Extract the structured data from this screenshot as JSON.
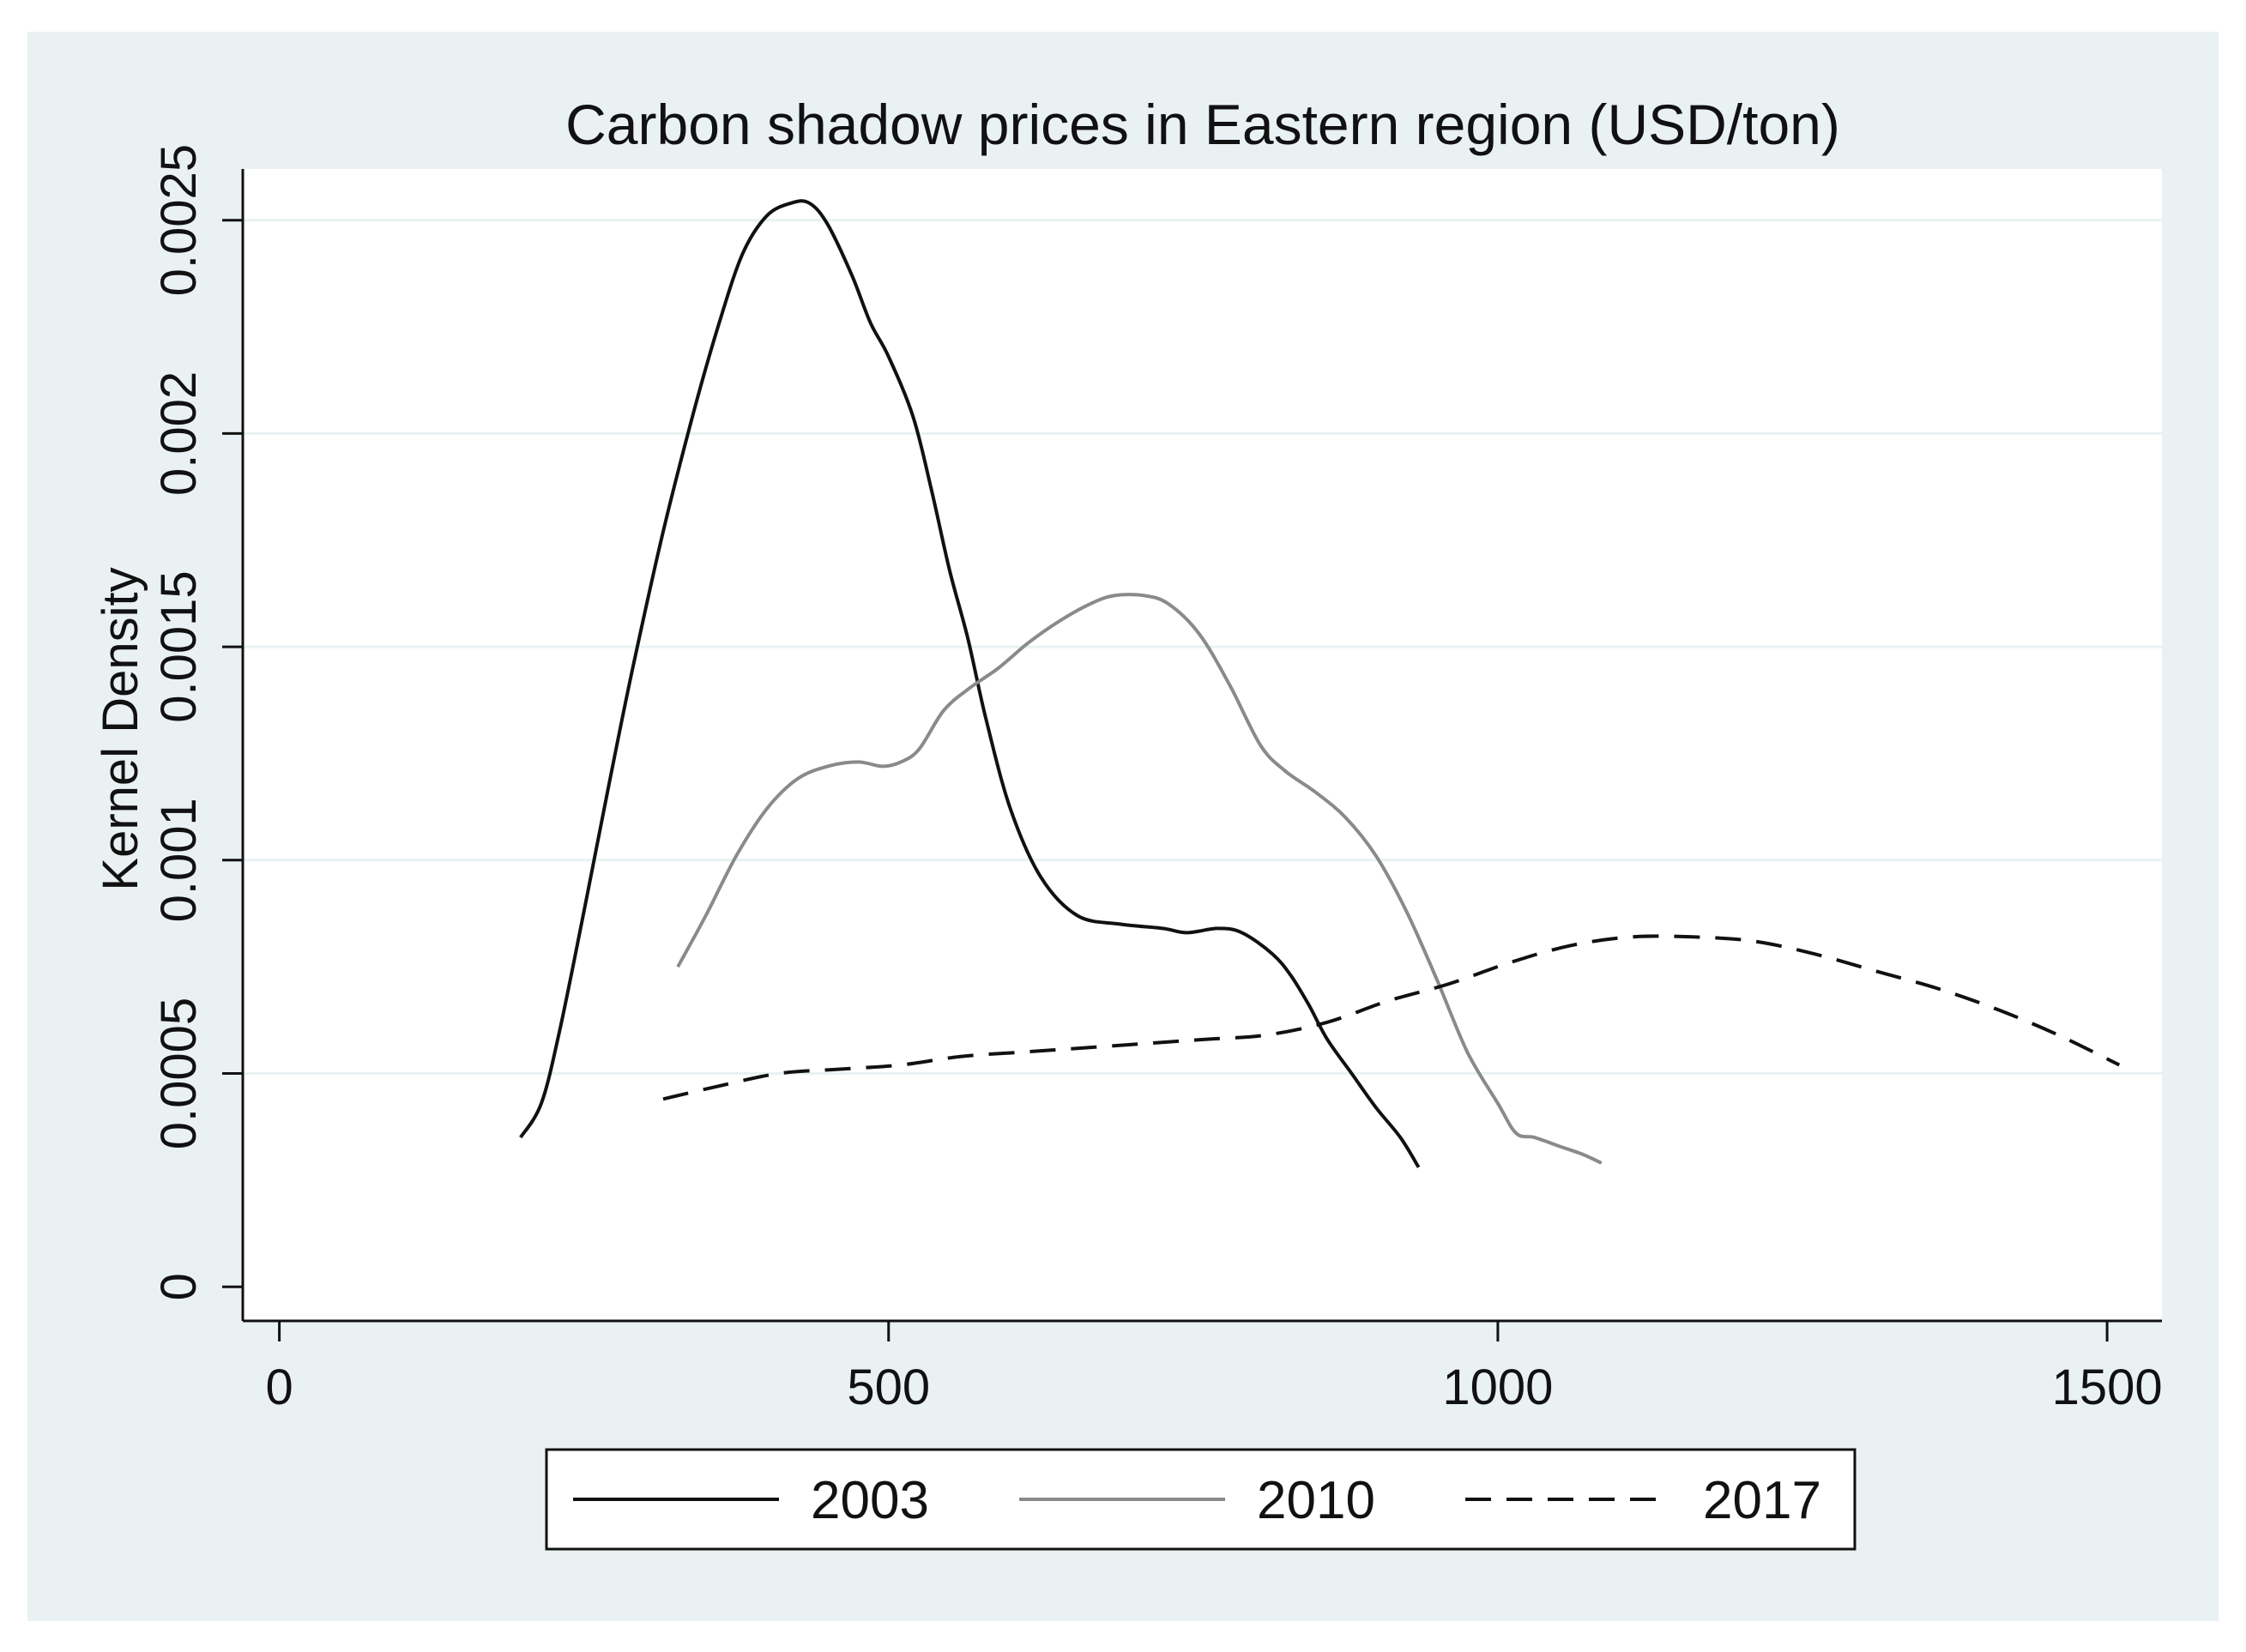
{
  "chart_data": {
    "type": "line",
    "title": "Carbon shadow prices in Eastern region (USD/ton)",
    "xlabel": "",
    "ylabel": "Kernel Density",
    "xlim": [
      -30,
      1545
    ],
    "ylim": [
      -8e-05,
      0.00262
    ],
    "x_ticks": [
      0,
      500,
      1000,
      1500
    ],
    "x_tick_labels": [
      "0",
      "500",
      "1000",
      "1500"
    ],
    "y_ticks": [
      0,
      0.0005,
      0.001,
      0.0015,
      0.002,
      0.0025
    ],
    "y_tick_labels": [
      "0",
      "0.0005",
      "0.001",
      "0.0015",
      "0.002",
      "0.0025"
    ],
    "grid": true,
    "legend_position": "bottom",
    "series": [
      {
        "name": "2003",
        "style": "solid",
        "color": "#111111",
        "x": [
          198,
          215,
          230,
          250,
          270,
          290,
          315,
          340,
          360,
          380,
          400,
          420,
          435,
          450,
          470,
          485,
          500,
          520,
          535,
          550,
          565,
          580,
          600,
          625,
          655,
          690,
          725,
          745,
          770,
          790,
          815,
          830,
          845,
          860,
          880,
          900,
          920,
          935
        ],
        "y": [
          0.00035,
          0.00043,
          0.0006,
          0.00088,
          0.00117,
          0.00145,
          0.00177,
          0.00205,
          0.00225,
          0.00242,
          0.00251,
          0.00254,
          0.00254,
          0.00249,
          0.00237,
          0.00226,
          0.00218,
          0.00204,
          0.00187,
          0.00168,
          0.00152,
          0.00133,
          0.00112,
          0.00096,
          0.00087,
          0.00085,
          0.00084,
          0.00083,
          0.00084,
          0.00083,
          0.00078,
          0.00073,
          0.00066,
          0.00058,
          0.0005,
          0.00042,
          0.00035,
          0.00028
        ]
      },
      {
        "name": "2010",
        "style": "solid",
        "color": "#8a8a8a",
        "x": [
          327,
          350,
          375,
          400,
          425,
          450,
          475,
          495,
          510,
          525,
          545,
          565,
          590,
          615,
          640,
          665,
          685,
          710,
          730,
          755,
          780,
          805,
          825,
          850,
          875,
          900,
          925,
          950,
          975,
          1000,
          1015,
          1030,
          1050,
          1070,
          1085
        ],
        "y": [
          0.00075,
          0.00087,
          0.00101,
          0.00112,
          0.00119,
          0.00122,
          0.00123,
          0.00122,
          0.00123,
          0.00126,
          0.00135,
          0.0014,
          0.00145,
          0.00151,
          0.00156,
          0.0016,
          0.00162,
          0.00162,
          0.0016,
          0.00153,
          0.00141,
          0.00127,
          0.00121,
          0.00116,
          0.0011,
          0.00101,
          0.00088,
          0.00072,
          0.00055,
          0.00043,
          0.00036,
          0.00035,
          0.00033,
          0.00031,
          0.00029
        ]
      },
      {
        "name": "2017",
        "style": "dashed",
        "color": "#111111",
        "x": [
          315,
          360,
          410,
          460,
          510,
          560,
          610,
          660,
          710,
          760,
          810,
          860,
          910,
          960,
          1010,
          1060,
          1110,
          1160,
          1210,
          1260,
          1310,
          1360,
          1410,
          1460,
          1510
        ],
        "y": [
          0.00044,
          0.00047,
          0.0005,
          0.00051,
          0.00052,
          0.00054,
          0.00055,
          0.00056,
          0.00057,
          0.00058,
          0.00059,
          0.00062,
          0.00067,
          0.00071,
          0.00076,
          0.0008,
          0.00082,
          0.00082,
          0.00081,
          0.00078,
          0.00074,
          0.0007,
          0.00065,
          0.00059,
          0.00052
        ]
      }
    ],
    "colors": {
      "background": "#eaf1f3",
      "plot_background": "#ffffff",
      "grid": "#eaf1f3",
      "axis": "#111111"
    }
  }
}
